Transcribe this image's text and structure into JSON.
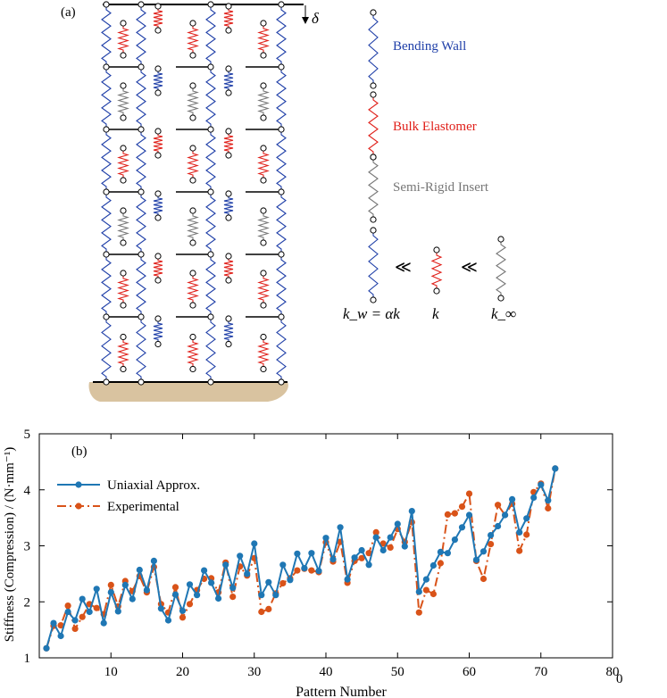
{
  "panel_a": {
    "label": "(a)",
    "delta_label": "δ",
    "legend": {
      "bending_wall": "Bending Wall",
      "bulk_elastomer": "Bulk Elastomer",
      "semi_rigid_insert": "Semi-Rigid Insert",
      "relation_symbol": "≪",
      "k_w_label": "k_w = αk",
      "k_label": "k",
      "k_inf_label": "k_∞"
    },
    "colors": {
      "bending_wall": "#1f3fa8",
      "bulk_elastomer": "#e0201a",
      "semi_rigid_insert": "#777777",
      "ground": "#d9c3a0"
    }
  },
  "chart_data": {
    "type": "line",
    "panel_label": "(b)",
    "xlabel": "Pattern Number",
    "ylabel": "Stiffness (Compression) / (N·mm⁻¹)",
    "xlim": [
      0,
      80
    ],
    "ylim": [
      1,
      5
    ],
    "xticks": [
      10,
      20,
      30,
      40,
      50,
      60,
      70,
      80
    ],
    "yticks": [
      1,
      2,
      3,
      4,
      5
    ],
    "x_origin_label": "0",
    "legend_position": "top-left",
    "grid": false,
    "series": [
      {
        "name": "Uniaxial Approx.",
        "color": "#1f77b4",
        "style": "solid",
        "x": [
          1,
          2,
          3,
          4,
          5,
          6,
          7,
          8,
          9,
          10,
          11,
          12,
          13,
          14,
          15,
          16,
          17,
          18,
          19,
          20,
          21,
          22,
          23,
          24,
          25,
          26,
          27,
          28,
          29,
          30,
          31,
          32,
          33,
          34,
          35,
          36,
          37,
          38,
          39,
          40,
          41,
          42,
          43,
          44,
          45,
          46,
          47,
          48,
          49,
          50,
          51,
          52,
          53,
          54,
          55,
          56,
          57,
          58,
          59,
          60,
          61,
          62,
          63,
          64,
          65,
          66,
          67,
          68,
          69,
          70,
          71,
          72
        ],
        "y": [
          1.17,
          1.62,
          1.39,
          1.82,
          1.67,
          2.05,
          1.82,
          2.23,
          1.62,
          2.17,
          1.83,
          2.3,
          2.05,
          2.57,
          2.21,
          2.73,
          1.88,
          1.67,
          2.13,
          1.84,
          2.31,
          2.12,
          2.56,
          2.34,
          2.06,
          2.66,
          2.25,
          2.82,
          2.5,
          3.04,
          2.12,
          2.35,
          2.12,
          2.66,
          2.39,
          2.86,
          2.6,
          2.87,
          2.55,
          3.14,
          2.76,
          3.33,
          2.4,
          2.79,
          2.92,
          2.66,
          3.15,
          2.92,
          3.15,
          3.39,
          2.99,
          3.62,
          2.18,
          2.4,
          2.65,
          2.89,
          2.87,
          3.11,
          3.33,
          3.55,
          2.75,
          2.9,
          3.19,
          3.35,
          3.55,
          3.83,
          3.24,
          3.49,
          3.86,
          4.09,
          3.81,
          4.38
        ]
      },
      {
        "name": "Experimental",
        "color": "#d95319",
        "style": "dashdot",
        "x": [
          1,
          2,
          3,
          4,
          5,
          6,
          7,
          8,
          9,
          10,
          11,
          12,
          13,
          14,
          15,
          16,
          17,
          18,
          19,
          20,
          21,
          22,
          23,
          24,
          25,
          26,
          27,
          28,
          29,
          30,
          31,
          32,
          33,
          34,
          35,
          36,
          37,
          38,
          39,
          40,
          41,
          42,
          43,
          44,
          45,
          46,
          47,
          48,
          49,
          50,
          51,
          52,
          53,
          54,
          55,
          56,
          57,
          58,
          59,
          60,
          61,
          62,
          63,
          64,
          65,
          66,
          67,
          68,
          69,
          70,
          71,
          72
        ],
        "y": [
          1.17,
          1.57,
          1.58,
          1.93,
          1.52,
          1.73,
          1.96,
          1.89,
          1.78,
          2.3,
          1.92,
          2.37,
          2.19,
          2.46,
          2.17,
          2.62,
          1.96,
          1.81,
          2.26,
          1.72,
          1.96,
          2.21,
          2.41,
          2.42,
          2.17,
          2.7,
          2.09,
          2.63,
          2.47,
          2.78,
          1.82,
          1.87,
          2.15,
          2.33,
          2.42,
          2.56,
          2.59,
          2.56,
          2.53,
          3.06,
          2.72,
          3.07,
          2.34,
          2.73,
          2.78,
          2.87,
          3.24,
          3.04,
          2.97,
          3.3,
          3.07,
          3.42,
          1.81,
          2.21,
          2.14,
          2.69,
          3.56,
          3.58,
          3.7,
          3.93,
          2.73,
          2.41,
          3.03,
          3.73,
          3.55,
          3.75,
          2.91,
          3.2,
          3.96,
          4.11,
          3.67,
          4.38
        ]
      }
    ]
  }
}
